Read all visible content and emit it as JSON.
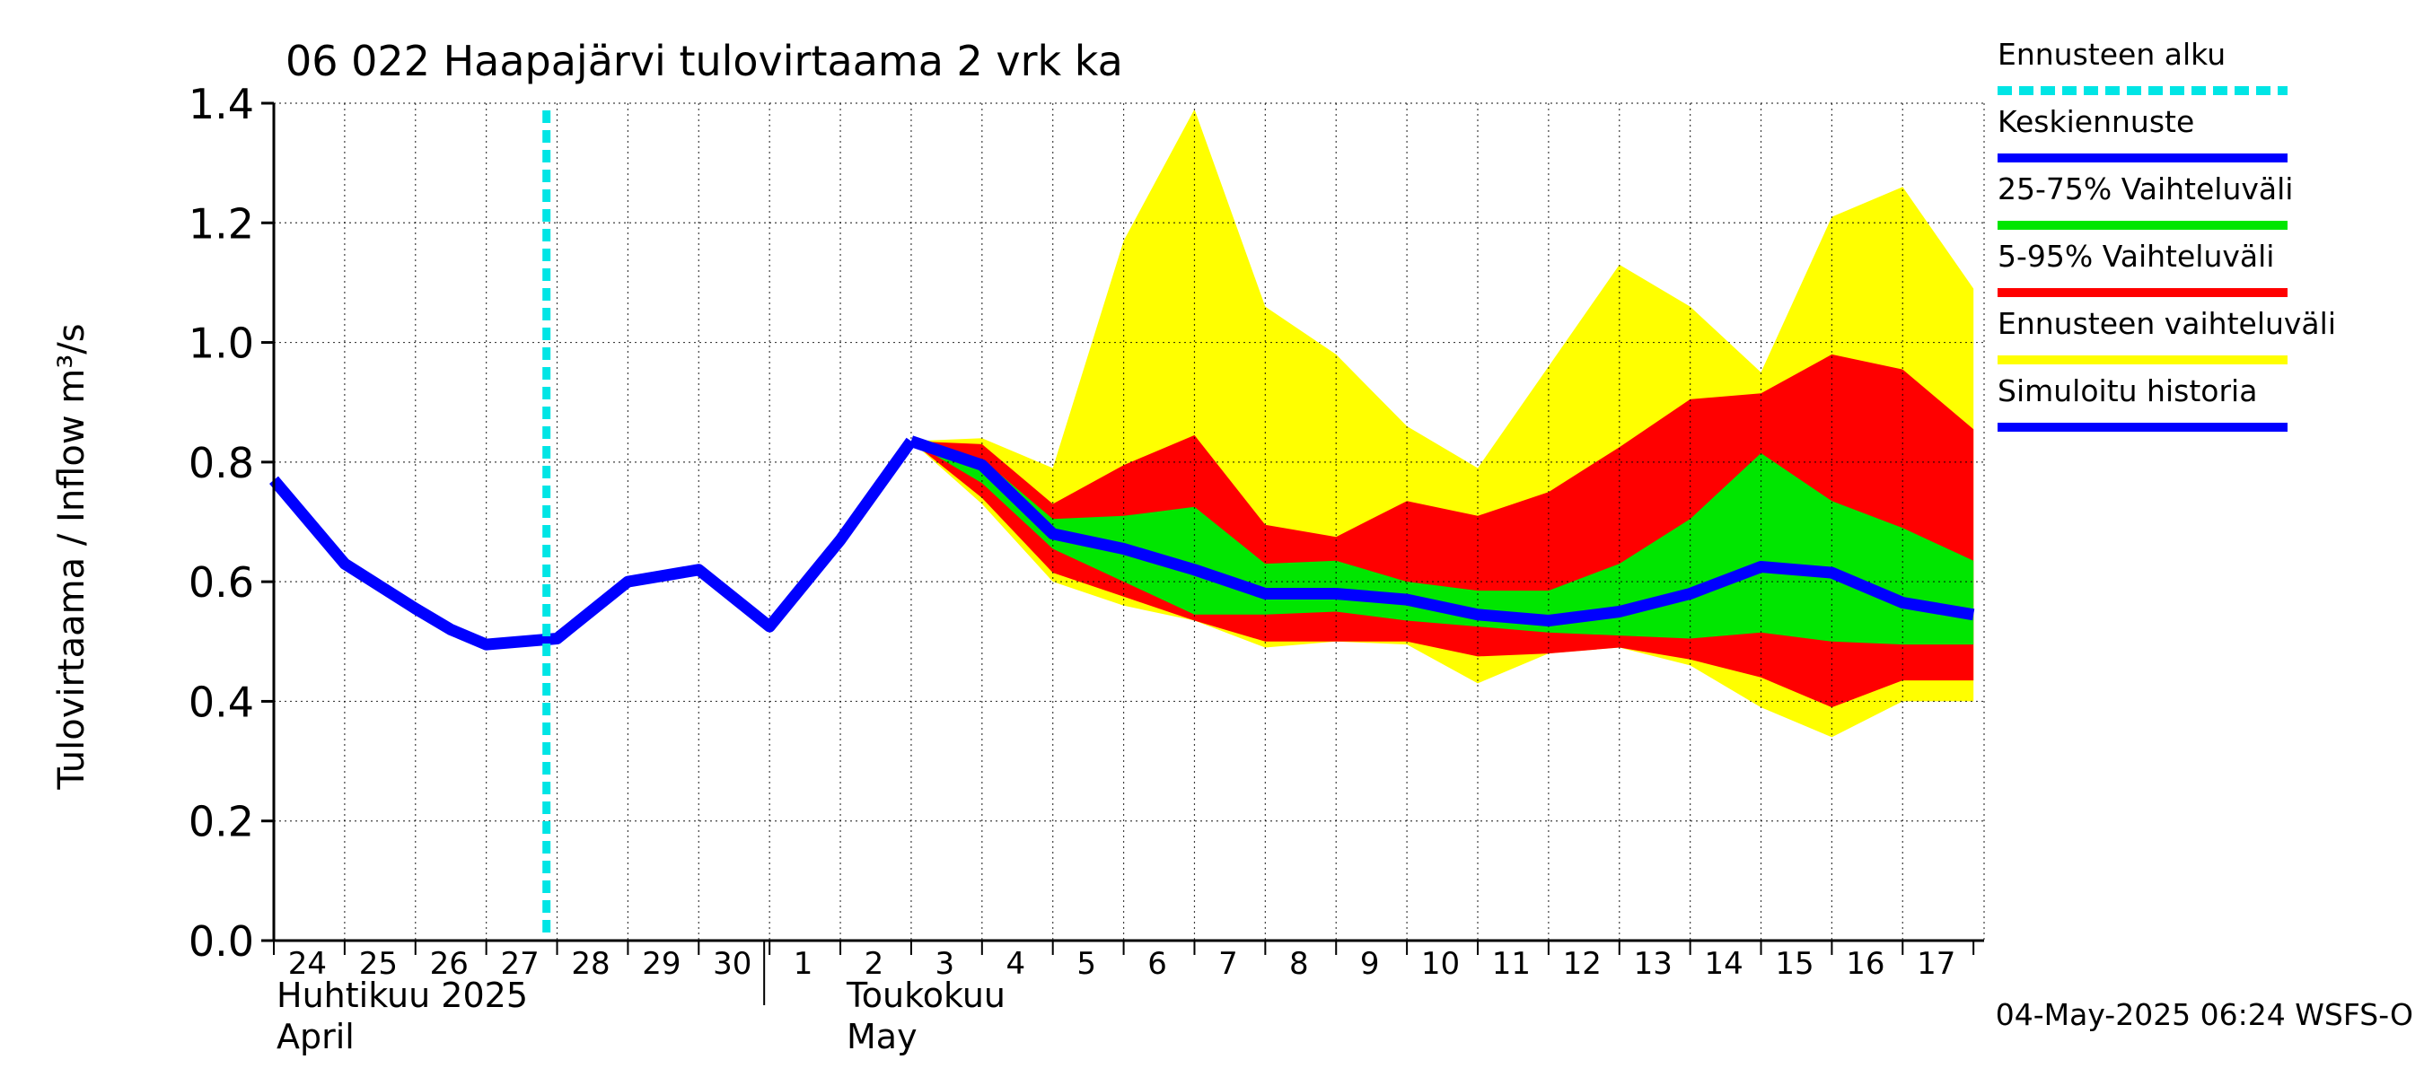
{
  "chart_data": {
    "type": "area",
    "title": "06 022 Haapajärvi tulovirtaama 2 vrk ka",
    "ylabel": "Tulovirtaama / Inflow    m³/s",
    "ylim": [
      0,
      1.4
    ],
    "yticks": [
      "0.0",
      "0.2",
      "0.4",
      "0.6",
      "0.8",
      "1.0",
      "1.2",
      "1.4"
    ],
    "xdays": [
      "24",
      "25",
      "26",
      "27",
      "28",
      "29",
      "30",
      "1",
      "2",
      "3",
      "4",
      "5",
      "6",
      "7",
      "8",
      "9",
      "10",
      "11",
      "12",
      "13",
      "14",
      "15",
      "16",
      "17"
    ],
    "month1": {
      "fi": "Huhtikuu  2025",
      "en": "April"
    },
    "month2": {
      "fi": "Toukokuu",
      "en": "May"
    },
    "forecast_start_day": 3.85,
    "grid": true,
    "legend_position": "right",
    "footer": "04-May-2025 06:24 WSFS-O",
    "colors": {
      "forecast_start": "#00e5e5",
      "median": "#0000ff",
      "p25_75": "#00e600",
      "p5_95": "#ff0000",
      "range": "#ffff00",
      "history": "#0000ff"
    },
    "legend": [
      {
        "label": "Ennusteen alku",
        "key": "forecast_start",
        "dashed": true
      },
      {
        "label": "Keskiennuste",
        "key": "median"
      },
      {
        "label": "25-75% Vaihteluväli",
        "key": "p25_75"
      },
      {
        "label": "5-95% Vaihteluväli",
        "key": "p5_95"
      },
      {
        "label": "Ennusteen vaihteluväli",
        "key": "range"
      },
      {
        "label": "Simuloitu historia",
        "key": "history"
      }
    ],
    "history": {
      "x": [
        0,
        1,
        2,
        2.5,
        3,
        4,
        5,
        6,
        7,
        8,
        9
      ],
      "y": [
        0.77,
        0.63,
        0.555,
        0.52,
        0.495,
        0.505,
        0.6,
        0.62,
        0.525,
        0.67,
        0.835
      ]
    },
    "forecast": {
      "x": [
        9,
        10,
        11,
        12,
        13,
        14,
        15,
        16,
        17,
        18,
        19,
        20,
        21,
        22,
        23,
        24
      ],
      "range_high": [
        0.835,
        0.84,
        0.79,
        1.17,
        1.39,
        1.06,
        0.98,
        0.86,
        0.79,
        0.96,
        1.13,
        1.06,
        0.95,
        1.21,
        1.26,
        1.09
      ],
      "range_low": [
        0.835,
        0.73,
        0.6,
        0.56,
        0.535,
        0.49,
        0.5,
        0.495,
        0.43,
        0.48,
        0.49,
        0.46,
        0.39,
        0.34,
        0.4,
        0.4
      ],
      "p95": [
        0.835,
        0.83,
        0.73,
        0.795,
        0.845,
        0.695,
        0.675,
        0.735,
        0.71,
        0.75,
        0.825,
        0.905,
        0.915,
        0.98,
        0.955,
        0.855
      ],
      "p5": [
        0.835,
        0.74,
        0.615,
        0.575,
        0.535,
        0.5,
        0.5,
        0.5,
        0.475,
        0.48,
        0.49,
        0.47,
        0.44,
        0.39,
        0.435,
        0.435
      ],
      "p75": [
        0.835,
        0.805,
        0.705,
        0.71,
        0.725,
        0.63,
        0.635,
        0.6,
        0.585,
        0.585,
        0.63,
        0.705,
        0.815,
        0.735,
        0.69,
        0.635
      ],
      "p25": [
        0.835,
        0.765,
        0.655,
        0.6,
        0.545,
        0.545,
        0.55,
        0.535,
        0.525,
        0.515,
        0.51,
        0.505,
        0.515,
        0.5,
        0.495,
        0.495
      ],
      "median": [
        0.835,
        0.795,
        0.68,
        0.655,
        0.62,
        0.58,
        0.58,
        0.57,
        0.545,
        0.535,
        0.55,
        0.58,
        0.625,
        0.615,
        0.565,
        0.545
      ]
    }
  }
}
